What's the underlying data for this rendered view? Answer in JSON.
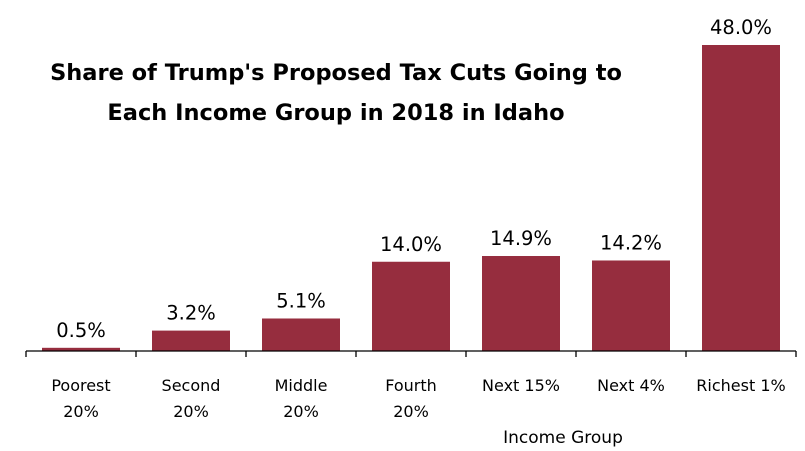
{
  "chart_data": {
    "type": "bar",
    "title_lines": [
      "Share of Trump's Proposed Tax Cuts Going to",
      "Each Income Group in 2018 in Idaho"
    ],
    "xlabel": "Income Group",
    "ylabel": "",
    "categories": [
      [
        "Poorest",
        "20%"
      ],
      [
        "Second",
        "20%"
      ],
      [
        "Middle",
        "20%"
      ],
      [
        "Fourth",
        "20%"
      ],
      [
        "Next 15%"
      ],
      [
        "Next 4%"
      ],
      [
        "Richest 1%"
      ]
    ],
    "values": [
      0.5,
      3.2,
      5.1,
      14.0,
      14.9,
      14.2,
      48.0
    ],
    "value_labels": [
      "0.5%",
      "3.2%",
      "5.1%",
      "14.0%",
      "14.9%",
      "14.2%",
      "48.0%"
    ],
    "ylim": [
      0,
      48.0
    ],
    "grid": false,
    "legend": "none",
    "bar_color": "#962d3e"
  }
}
